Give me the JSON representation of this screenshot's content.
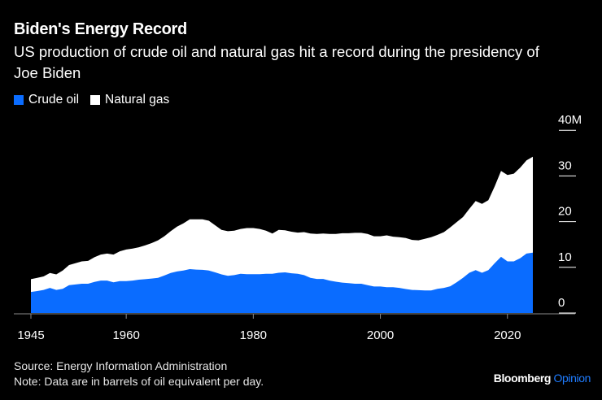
{
  "header": {
    "title": "Biden's Energy Record",
    "subtitle": "US production of crude oil and natural gas hit a record during the presidency of Joe Biden"
  },
  "footer": {
    "source": "Source: Energy Information Administration",
    "note": "Note: Data are in barrels of oil equivalent per day.",
    "logo_main": "Bloomberg",
    "logo_sub": "Opinion"
  },
  "chart_data": {
    "type": "area",
    "stacked": true,
    "title": "Biden's Energy Record",
    "legend_position": "top-left",
    "grid": false,
    "xlim": [
      1945,
      2024
    ],
    "ylim": [
      0,
      40
    ],
    "x_ticks": [
      "1945",
      "1960",
      "1980",
      "2000",
      "2020"
    ],
    "y_ticks": [
      "0",
      "10",
      "20",
      "30",
      "40M"
    ],
    "colors": {
      "crude": "#0a6cff",
      "gas": "#ffffff",
      "background": "#000000",
      "axis": "#8a8a8a"
    },
    "x": [
      1945,
      1946,
      1947,
      1948,
      1949,
      1950,
      1951,
      1952,
      1953,
      1954,
      1955,
      1956,
      1957,
      1958,
      1959,
      1960,
      1961,
      1962,
      1963,
      1964,
      1965,
      1966,
      1967,
      1968,
      1969,
      1970,
      1971,
      1972,
      1973,
      1974,
      1975,
      1976,
      1977,
      1978,
      1979,
      1980,
      1981,
      1982,
      1983,
      1984,
      1985,
      1986,
      1987,
      1988,
      1989,
      1990,
      1991,
      1992,
      1993,
      1994,
      1995,
      1996,
      1997,
      1998,
      1999,
      2000,
      2001,
      2002,
      2003,
      2004,
      2005,
      2006,
      2007,
      2008,
      2009,
      2010,
      2011,
      2012,
      2013,
      2014,
      2015,
      2016,
      2017,
      2018,
      2019,
      2020,
      2021,
      2022,
      2023,
      2024
    ],
    "series": [
      {
        "name": "Crude oil",
        "values": [
          4.6,
          4.8,
          5.05,
          5.5,
          5.05,
          5.3,
          6.1,
          6.25,
          6.4,
          6.4,
          6.8,
          7.1,
          7.1,
          6.7,
          7.0,
          7.0,
          7.1,
          7.3,
          7.4,
          7.55,
          7.7,
          8.2,
          8.75,
          9.1,
          9.3,
          9.6,
          9.5,
          9.45,
          9.3,
          8.9,
          8.45,
          8.15,
          8.3,
          8.6,
          8.5,
          8.5,
          8.5,
          8.6,
          8.6,
          8.8,
          8.9,
          8.7,
          8.6,
          8.3,
          7.7,
          7.45,
          7.45,
          7.1,
          6.85,
          6.65,
          6.55,
          6.4,
          6.4,
          6.1,
          5.8,
          5.8,
          5.65,
          5.65,
          5.5,
          5.25,
          5.05,
          5.0,
          4.95,
          4.95,
          5.3,
          5.5,
          5.85,
          6.7,
          7.7,
          8.8,
          9.4,
          8.8,
          9.4,
          10.9,
          12.3,
          11.3,
          11.3,
          12.0,
          13.0,
          13.2
        ]
      },
      {
        "name": "Natural gas",
        "values": [
          2.8,
          2.9,
          2.95,
          3.25,
          3.4,
          4.0,
          4.4,
          4.65,
          4.9,
          5.0,
          5.4,
          5.7,
          5.9,
          6.1,
          6.5,
          6.9,
          7.0,
          7.1,
          7.4,
          7.75,
          8.2,
          8.6,
          9.15,
          9.8,
          10.3,
          10.9,
          11.0,
          11.05,
          10.9,
          10.3,
          9.75,
          9.75,
          9.7,
          9.8,
          10.1,
          10.1,
          9.9,
          9.4,
          8.8,
          9.4,
          9.2,
          9.1,
          9.0,
          9.4,
          9.7,
          9.85,
          9.95,
          10.2,
          10.45,
          10.8,
          10.9,
          11.15,
          11.15,
          11.2,
          11.0,
          11.0,
          11.35,
          11.05,
          11.1,
          11.15,
          10.95,
          10.9,
          11.3,
          11.65,
          11.8,
          12.2,
          12.9,
          13.2,
          13.3,
          14.0,
          15.1,
          15.1,
          15.3,
          16.8,
          18.8,
          18.9,
          19.2,
          19.8,
          20.4,
          21.0
        ]
      }
    ]
  }
}
